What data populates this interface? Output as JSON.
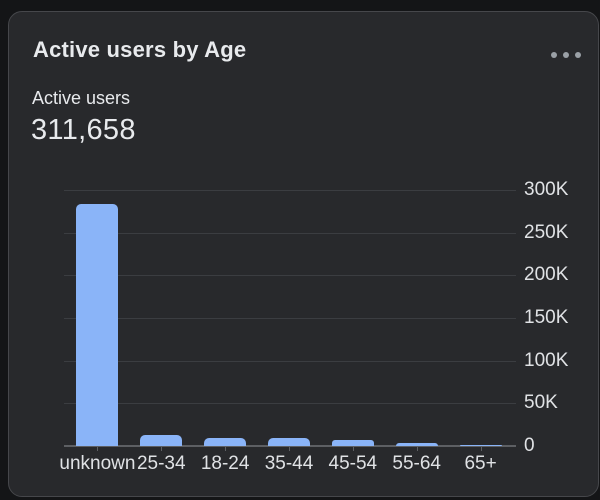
{
  "card": {
    "title": "Active users by Age",
    "menu_icon": "ellipsis-horizontal",
    "metric": {
      "label": "Active users",
      "value": "311,658"
    }
  },
  "colors": {
    "page_bg": "#141517",
    "card_bg": "#28292c",
    "card_border": "#46474b",
    "bar_color": "#8ab4f8",
    "gridline": "#3b3d41",
    "axis_line": "#5d5f63",
    "text_primary": "#e8eaed",
    "text_secondary": "#9aa0a6",
    "text_axis": "#e0e2e5"
  },
  "chart_data": {
    "type": "bar",
    "title": "Active users by Age",
    "categories": [
      "unknown",
      "25-34",
      "18-24",
      "35-44",
      "45-54",
      "55-64",
      "65+"
    ],
    "values": [
      284000,
      13000,
      9000,
      9000,
      7000,
      4000,
      800
    ],
    "xlabel": "",
    "ylabel": "",
    "ylim": [
      0,
      300000
    ],
    "y_tick_values": [
      0,
      50000,
      100000,
      150000,
      200000,
      250000,
      300000
    ],
    "y_tick_labels": [
      "0",
      "50K",
      "100K",
      "150K",
      "200K",
      "250K",
      "300K"
    ],
    "y_axis_side": "right",
    "grid": true,
    "legend": false,
    "bar_color": "#8ab4f8"
  }
}
